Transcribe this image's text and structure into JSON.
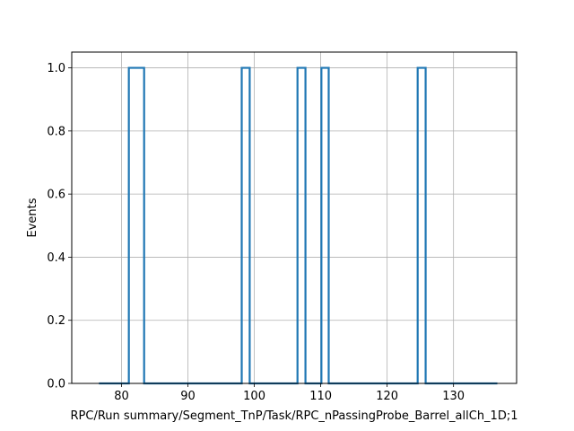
{
  "chart_data": {
    "type": "bar",
    "style": "step-histogram",
    "xlabel": "RPC/Run summary/Segment_TnP/Task/RPC_nPassingProbe_Barrel_allCh_1D;1",
    "ylabel": "Events",
    "xlim": [
      72.5,
      139.5
    ],
    "ylim": [
      0.0,
      1.05
    ],
    "xticks": [
      80,
      90,
      100,
      110,
      120,
      130
    ],
    "yticks": [
      0.0,
      0.2,
      0.4,
      0.6,
      0.8,
      1.0
    ],
    "xtick_labels": [
      "80",
      "90",
      "100",
      "110",
      "120",
      "130"
    ],
    "ytick_labels": [
      "0.0",
      "0.2",
      "0.4",
      "0.6",
      "0.8",
      "1.0"
    ],
    "grid": true,
    "line_color": "#1f77b4",
    "series": [
      {
        "edges": [
          76.6,
          81.1,
          83.4,
          98.1,
          99.3,
          106.5,
          107.7,
          110.1,
          111.2,
          124.6,
          125.8,
          136.6
        ],
        "values": [
          0,
          1,
          0,
          1,
          0,
          1,
          0,
          1,
          0,
          1,
          0
        ]
      }
    ]
  }
}
